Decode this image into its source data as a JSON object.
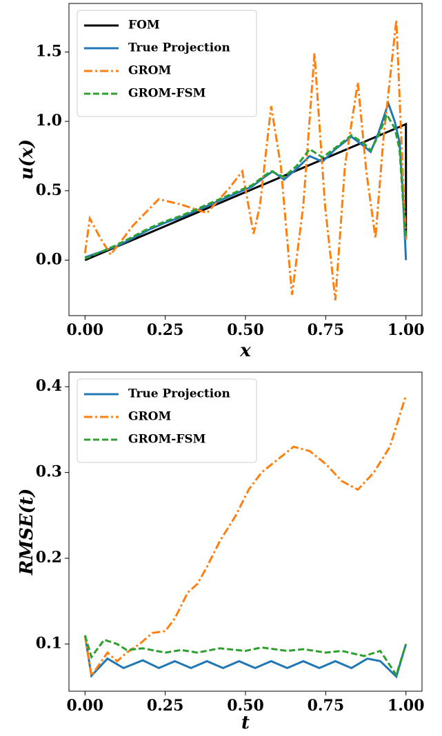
{
  "chart_data": [
    {
      "type": "line",
      "xlabel": "x",
      "ylabel": "u(x)",
      "legend": "upper left",
      "grid": false,
      "xlim": [
        -0.05,
        1.05
      ],
      "ylim": [
        -0.4,
        1.85
      ],
      "xticks": [
        {
          "value": 0,
          "label": "0.00"
        },
        0.25,
        {
          "value": 0.5,
          "label": "0.50"
        },
        0.75,
        {
          "value": 1,
          "label": "1.00"
        }
      ],
      "yticks": [
        {
          "value": 0,
          "label": "0.0"
        },
        0.5,
        {
          "value": 1,
          "label": "1.0"
        },
        1.5
      ],
      "series": [
        {
          "name": "FOM",
          "color": "#000000",
          "dash": "solid",
          "x": [
            0,
            1,
            1
          ],
          "values": [
            0,
            0.98,
            0.15
          ]
        },
        {
          "name": "True Projection",
          "color": "#1f77b4",
          "dash": "solid",
          "x": [
            0,
            0.05,
            0.1,
            0.15,
            0.2,
            0.25,
            0.3,
            0.35,
            0.4,
            0.45,
            0.5,
            0.52,
            0.56,
            0.585,
            0.62,
            0.66,
            0.7,
            0.74,
            0.78,
            0.83,
            0.87,
            0.89,
            0.915,
            0.945,
            0.965,
            0.98,
            0.99,
            1.0
          ],
          "values": [
            0.02,
            0.06,
            0.1,
            0.16,
            0.22,
            0.27,
            0.31,
            0.36,
            0.41,
            0.46,
            0.51,
            0.53,
            0.6,
            0.64,
            0.58,
            0.66,
            0.75,
            0.71,
            0.8,
            0.89,
            0.82,
            0.78,
            0.92,
            1.13,
            1.0,
            0.85,
            0.5,
            0.0
          ]
        },
        {
          "name": "GROM",
          "color": "#ff7f0e",
          "dash": "dashdot",
          "x": [
            0,
            0.015,
            0.05,
            0.08,
            0.15,
            0.23,
            0.3,
            0.38,
            0.45,
            0.49,
            0.525,
            0.545,
            0.58,
            0.61,
            0.645,
            0.68,
            0.715,
            0.748,
            0.78,
            0.81,
            0.85,
            0.877,
            0.905,
            0.93,
            0.97,
            0.99,
            1.0
          ],
          "values": [
            0.05,
            0.3,
            0.15,
            0.04,
            0.25,
            0.44,
            0.4,
            0.34,
            0.52,
            0.64,
            0.19,
            0.39,
            1.11,
            0.68,
            -0.25,
            0.39,
            1.49,
            0.39,
            -0.29,
            0.68,
            1.28,
            0.63,
            0.16,
            0.88,
            1.73,
            0.63,
            0.15
          ]
        },
        {
          "name": "GROM-FSM",
          "color": "#2ca02c",
          "dash": "dashed",
          "x": [
            0,
            0.05,
            0.1,
            0.15,
            0.2,
            0.25,
            0.3,
            0.35,
            0.4,
            0.45,
            0.5,
            0.52,
            0.56,
            0.58,
            0.62,
            0.66,
            0.7,
            0.74,
            0.78,
            0.83,
            0.87,
            0.89,
            0.915,
            0.94,
            0.965,
            0.98,
            0.99,
            1.0
          ],
          "values": [
            0.01,
            0.06,
            0.11,
            0.17,
            0.23,
            0.28,
            0.32,
            0.37,
            0.42,
            0.47,
            0.52,
            0.54,
            0.61,
            0.64,
            0.6,
            0.68,
            0.8,
            0.74,
            0.81,
            0.9,
            0.84,
            0.79,
            0.9,
            1.05,
            0.95,
            0.8,
            0.45,
            0.15
          ]
        }
      ]
    },
    {
      "type": "line",
      "xlabel": "t",
      "ylabel": "RMSE(t)",
      "legend": "upper left",
      "grid": false,
      "xlim": [
        -0.05,
        1.05
      ],
      "ylim": [
        0.045,
        0.417
      ],
      "xticks": [
        {
          "value": 0,
          "label": "0.00"
        },
        0.25,
        {
          "value": 0.5,
          "label": "0.50"
        },
        0.75,
        {
          "value": 1,
          "label": "1.00"
        }
      ],
      "yticks": [
        0.1,
        0.2,
        0.3,
        0.4
      ],
      "series": [
        {
          "name": "True Projection",
          "color": "#1f77b4",
          "dash": "solid",
          "x": [
            0,
            0.02,
            0.07,
            0.12,
            0.18,
            0.23,
            0.28,
            0.33,
            0.38,
            0.43,
            0.48,
            0.53,
            0.58,
            0.63,
            0.68,
            0.73,
            0.78,
            0.83,
            0.88,
            0.92,
            0.97,
            1.0
          ],
          "values": [
            0.11,
            0.063,
            0.083,
            0.072,
            0.081,
            0.072,
            0.08,
            0.072,
            0.08,
            0.072,
            0.08,
            0.072,
            0.08,
            0.072,
            0.08,
            0.072,
            0.08,
            0.072,
            0.083,
            0.08,
            0.062,
            0.1
          ]
        },
        {
          "name": "GROM",
          "color": "#ff7f0e",
          "dash": "dashdot",
          "x": [
            0,
            0.02,
            0.07,
            0.1,
            0.13,
            0.17,
            0.21,
            0.25,
            0.28,
            0.32,
            0.35,
            0.38,
            0.42,
            0.47,
            0.51,
            0.55,
            0.6,
            0.65,
            0.7,
            0.75,
            0.8,
            0.85,
            0.9,
            0.95,
            1.0
          ],
          "values": [
            0.11,
            0.063,
            0.09,
            0.08,
            0.09,
            0.1,
            0.113,
            0.115,
            0.13,
            0.16,
            0.17,
            0.19,
            0.22,
            0.25,
            0.28,
            0.3,
            0.315,
            0.33,
            0.325,
            0.31,
            0.29,
            0.28,
            0.3,
            0.33,
            0.39
          ]
        },
        {
          "name": "GROM-FSM",
          "color": "#2ca02c",
          "dash": "dashed",
          "x": [
            0,
            0.02,
            0.06,
            0.1,
            0.13,
            0.18,
            0.25,
            0.3,
            0.35,
            0.42,
            0.5,
            0.55,
            0.63,
            0.68,
            0.75,
            0.8,
            0.87,
            0.92,
            0.97,
            1.0
          ],
          "values": [
            0.11,
            0.085,
            0.105,
            0.1,
            0.093,
            0.095,
            0.09,
            0.093,
            0.09,
            0.095,
            0.092,
            0.096,
            0.092,
            0.094,
            0.09,
            0.092,
            0.086,
            0.092,
            0.064,
            0.1
          ]
        }
      ]
    }
  ]
}
